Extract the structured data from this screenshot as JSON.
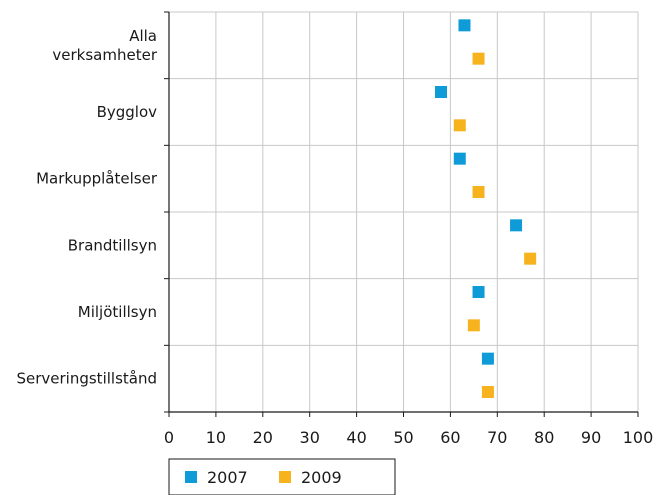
{
  "chart_data": {
    "type": "scatter",
    "orientation": "horizontal",
    "title": "",
    "xlabel": "",
    "ylabel": "",
    "xlim": [
      0,
      100
    ],
    "xticks": [
      0,
      10,
      20,
      30,
      40,
      50,
      60,
      70,
      80,
      90,
      100
    ],
    "grid": true,
    "legend_position": "bottom-left",
    "categories": [
      [
        "Alla",
        "verksamheter"
      ],
      [
        "Bygglov"
      ],
      [
        "Markupplåtelser"
      ],
      [
        "Brandtillsyn"
      ],
      [
        "Miljötillsyn"
      ],
      [
        "Serveringstillstånd"
      ]
    ],
    "series": [
      {
        "name": "2007",
        "color": "#0f9bd7",
        "marker": "square",
        "values": [
          63,
          58,
          62,
          74,
          66,
          68
        ]
      },
      {
        "name": "2009",
        "color": "#f7b31e",
        "marker": "square",
        "values": [
          66,
          62,
          66,
          77,
          65,
          68
        ]
      }
    ]
  }
}
